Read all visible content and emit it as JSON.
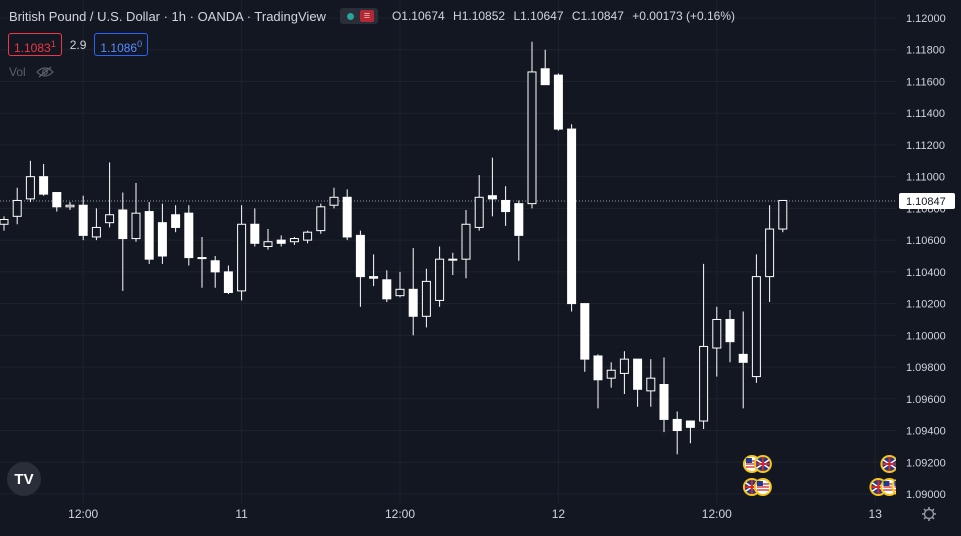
{
  "legend": {
    "title": "British Pound / U.S. Dollar · 1h · OANDA · TradingView",
    "ohlc": {
      "o_key": "O",
      "o_val": "1.10674",
      "h_key": "H",
      "h_val": "1.10852",
      "l_key": "L",
      "l_val": "1.10647",
      "c_key": "C",
      "c_val": "1.10847",
      "change": "+0.00173 (+0.16%)"
    }
  },
  "quote": {
    "sell_main": "1.1083",
    "sell_sup": "1",
    "spread": "2.9",
    "buy_main": "1.1086",
    "buy_sup": "0"
  },
  "volume": {
    "label": "Vol"
  },
  "logo": {
    "text": "TV"
  },
  "colors": {
    "background": "#131722",
    "up": "#ffffff",
    "down": "#ffffff",
    "grid": "#1e222d",
    "text": "#d1d4dc",
    "price_line": "#9598a1"
  },
  "chart_data": {
    "type": "candlestick",
    "symbol": "GBPUSD",
    "interval": "1h",
    "ylim": [
      1.0898,
      1.1209
    ],
    "y_ticks": [
      1.12,
      1.118,
      1.116,
      1.114,
      1.112,
      1.11,
      1.108,
      1.106,
      1.104,
      1.102,
      1.1,
      1.098,
      1.096,
      1.094,
      1.092,
      1.09
    ],
    "y_tick_labels": [
      "1.12000",
      "1.11800",
      "1.11600",
      "1.11400",
      "1.11200",
      "1.11000",
      "1.10800",
      "1.10600",
      "1.10400",
      "1.10200",
      "1.10000",
      "1.09800",
      "1.09600",
      "1.09400",
      "1.09200",
      "1.09000"
    ],
    "x_ticks": [
      {
        "index": 6,
        "label": "12:00"
      },
      {
        "index": 18,
        "label": "11"
      },
      {
        "index": 30,
        "label": "12:00"
      },
      {
        "index": 42,
        "label": "12"
      },
      {
        "index": 54,
        "label": "12:00"
      },
      {
        "index": 66,
        "label": "13"
      }
    ],
    "last_price": 1.10847,
    "last_price_label": "1.10847",
    "candles": [
      {
        "o": 1.107,
        "h": 1.1075,
        "l": 1.1066,
        "c": 1.1073
      },
      {
        "o": 1.1075,
        "h": 1.1093,
        "l": 1.107,
        "c": 1.1085
      },
      {
        "o": 1.1086,
        "h": 1.111,
        "l": 1.1084,
        "c": 1.11
      },
      {
        "o": 1.11,
        "h": 1.1108,
        "l": 1.1088,
        "c": 1.1089
      },
      {
        "o": 1.109,
        "h": 1.109,
        "l": 1.1078,
        "c": 1.1081
      },
      {
        "o": 1.1081,
        "h": 1.1084,
        "l": 1.1079,
        "c": 1.1082
      },
      {
        "o": 1.1082,
        "h": 1.1088,
        "l": 1.106,
        "c": 1.1063
      },
      {
        "o": 1.1062,
        "h": 1.108,
        "l": 1.106,
        "c": 1.1068
      },
      {
        "o": 1.1071,
        "h": 1.1109,
        "l": 1.1068,
        "c": 1.1076
      },
      {
        "o": 1.1079,
        "h": 1.109,
        "l": 1.1028,
        "c": 1.1061
      },
      {
        "o": 1.1061,
        "h": 1.1096,
        "l": 1.1059,
        "c": 1.1077
      },
      {
        "o": 1.1078,
        "h": 1.1084,
        "l": 1.1045,
        "c": 1.1048
      },
      {
        "o": 1.1071,
        "h": 1.1083,
        "l": 1.1045,
        "c": 1.105
      },
      {
        "o": 1.1076,
        "h": 1.1082,
        "l": 1.1065,
        "c": 1.1068
      },
      {
        "o": 1.1077,
        "h": 1.1082,
        "l": 1.1044,
        "c": 1.1049
      },
      {
        "o": 1.1049,
        "h": 1.1062,
        "l": 1.103,
        "c": 1.1049
      },
      {
        "o": 1.1047,
        "h": 1.105,
        "l": 1.103,
        "c": 1.104
      },
      {
        "o": 1.104,
        "h": 1.1044,
        "l": 1.1026,
        "c": 1.1027
      },
      {
        "o": 1.1028,
        "h": 1.1082,
        "l": 1.1022,
        "c": 1.107
      },
      {
        "o": 1.107,
        "h": 1.108,
        "l": 1.1056,
        "c": 1.1058
      },
      {
        "o": 1.1056,
        "h": 1.1067,
        "l": 1.1054,
        "c": 1.1059
      },
      {
        "o": 1.106,
        "h": 1.1063,
        "l": 1.1056,
        "c": 1.1058
      },
      {
        "o": 1.1059,
        "h": 1.1062,
        "l": 1.1057,
        "c": 1.1061
      },
      {
        "o": 1.106,
        "h": 1.1066,
        "l": 1.1058,
        "c": 1.1065
      },
      {
        "o": 1.1066,
        "h": 1.1083,
        "l": 1.1064,
        "c": 1.1081
      },
      {
        "o": 1.1082,
        "h": 1.1093,
        "l": 1.108,
        "c": 1.1087
      },
      {
        "o": 1.1087,
        "h": 1.1092,
        "l": 1.106,
        "c": 1.1062
      },
      {
        "o": 1.1063,
        "h": 1.1066,
        "l": 1.1018,
        "c": 1.1037
      },
      {
        "o": 1.1037,
        "h": 1.1051,
        "l": 1.1031,
        "c": 1.1036
      },
      {
        "o": 1.1035,
        "h": 1.1041,
        "l": 1.1021,
        "c": 1.1023
      },
      {
        "o": 1.1025,
        "h": 1.104,
        "l": 1.1024,
        "c": 1.1029
      },
      {
        "o": 1.1029,
        "h": 1.1055,
        "l": 1.1,
        "c": 1.1012
      },
      {
        "o": 1.1012,
        "h": 1.1042,
        "l": 1.1005,
        "c": 1.1034
      },
      {
        "o": 1.1022,
        "h": 1.1056,
        "l": 1.1018,
        "c": 1.1048
      },
      {
        "o": 1.1048,
        "h": 1.1052,
        "l": 1.1038,
        "c": 1.1048
      },
      {
        "o": 1.1048,
        "h": 1.1079,
        "l": 1.1036,
        "c": 1.107
      },
      {
        "o": 1.1068,
        "h": 1.1101,
        "l": 1.1066,
        "c": 1.1087
      },
      {
        "o": 1.1088,
        "h": 1.1112,
        "l": 1.1075,
        "c": 1.1086
      },
      {
        "o": 1.1085,
        "h": 1.1094,
        "l": 1.1069,
        "c": 1.1078
      },
      {
        "o": 1.1083,
        "h": 1.1085,
        "l": 1.1047,
        "c": 1.1063
      },
      {
        "o": 1.1083,
        "h": 1.1185,
        "l": 1.108,
        "c": 1.1166
      },
      {
        "o": 1.1168,
        "h": 1.118,
        "l": 1.1158,
        "c": 1.1158
      },
      {
        "o": 1.1164,
        "h": 1.1165,
        "l": 1.1129,
        "c": 1.113
      },
      {
        "o": 1.113,
        "h": 1.1133,
        "l": 1.1015,
        "c": 1.102
      },
      {
        "o": 1.102,
        "h": 1.102,
        "l": 1.0977,
        "c": 1.0985
      },
      {
        "o": 1.0987,
        "h": 1.0988,
        "l": 1.0954,
        "c": 1.0972
      },
      {
        "o": 1.0973,
        "h": 1.0983,
        "l": 1.0967,
        "c": 1.0978
      },
      {
        "o": 1.0976,
        "h": 1.099,
        "l": 1.0963,
        "c": 1.0985
      },
      {
        "o": 1.0985,
        "h": 1.0985,
        "l": 1.0955,
        "c": 1.0966
      },
      {
        "o": 1.0965,
        "h": 1.0985,
        "l": 1.0955,
        "c": 1.0973
      },
      {
        "o": 1.0969,
        "h": 1.0986,
        "l": 1.0939,
        "c": 1.0947
      },
      {
        "o": 1.0947,
        "h": 1.0952,
        "l": 1.0925,
        "c": 1.094
      },
      {
        "o": 1.0946,
        "h": 1.0946,
        "l": 1.0932,
        "c": 1.0942
      },
      {
        "o": 1.0946,
        "h": 1.1045,
        "l": 1.0941,
        "c": 1.0993
      },
      {
        "o": 1.0992,
        "h": 1.1018,
        "l": 1.0974,
        "c": 1.101
      },
      {
        "o": 1.101,
        "h": 1.1016,
        "l": 1.0983,
        "c": 1.0996
      },
      {
        "o": 1.0988,
        "h": 1.1015,
        "l": 1.0954,
        "c": 1.0983
      },
      {
        "o": 1.0974,
        "h": 1.1051,
        "l": 1.097,
        "c": 1.1037
      },
      {
        "o": 1.1037,
        "h": 1.1082,
        "l": 1.1021,
        "c": 1.1067
      },
      {
        "o": 1.1067,
        "h": 1.1085,
        "l": 1.1065,
        "c": 1.1085
      }
    ],
    "events": [
      {
        "index": 57,
        "row": "top",
        "flags": [
          "us",
          "uk"
        ]
      },
      {
        "index": 57,
        "row": "bottom",
        "flags": [
          "uk",
          "us"
        ]
      },
      {
        "index": 67,
        "row": "top",
        "flags": [
          "uk"
        ]
      },
      {
        "index": 67,
        "row": "bottom",
        "flags": [
          "uk",
          "us",
          "us"
        ]
      }
    ]
  }
}
